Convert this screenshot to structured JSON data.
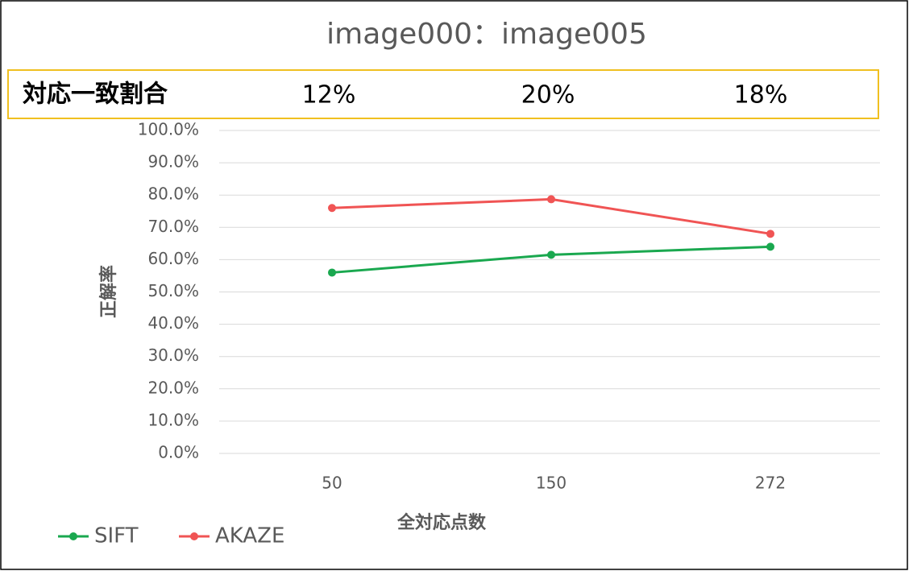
{
  "chart_data": {
    "type": "line",
    "title": "image000：image005",
    "x_label": "全対応点数",
    "y_label": "正解率",
    "categories": [
      "50",
      "150",
      "272"
    ],
    "series": [
      {
        "name": "SIFT",
        "color": "#1aa84f",
        "values": [
          56,
          61.5,
          64
        ]
      },
      {
        "name": "AKAZE",
        "color": "#f05454",
        "values": [
          76,
          78.7,
          68
        ]
      }
    ],
    "ylim": [
      0,
      100
    ],
    "yticks": [
      {
        "value": 0,
        "label": "0.0%"
      },
      {
        "value": 10,
        "label": "10.0%"
      },
      {
        "value": 20,
        "label": "20.0%"
      },
      {
        "value": 30,
        "label": "30.0%"
      },
      {
        "value": 40,
        "label": "40.0%"
      },
      {
        "value": 50,
        "label": "50.0%"
      },
      {
        "value": 60,
        "label": "60.0%"
      },
      {
        "value": 70,
        "label": "70.0%"
      },
      {
        "value": 80,
        "label": "80.0%"
      },
      {
        "value": 90,
        "label": "90.0%"
      },
      {
        "value": 100,
        "label": "100.0%"
      }
    ],
    "grid": true,
    "legend": "bottom-left",
    "match_ratio": {
      "label": "対応一致割合",
      "values": [
        12,
        20,
        18
      ],
      "value_labels": [
        "12%",
        "20%",
        "18%"
      ]
    }
  }
}
